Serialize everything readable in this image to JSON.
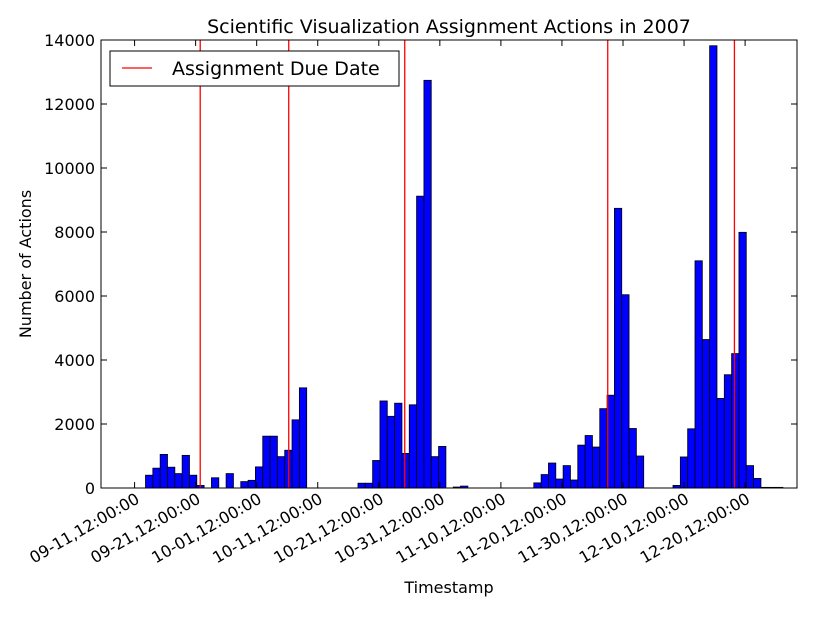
{
  "chart_data": {
    "type": "bar",
    "title": "Scientific Visualization Assignment Actions in 2007",
    "xlabel": "Timestamp",
    "ylabel": "Number of Actions",
    "ylim": [
      0,
      14000
    ],
    "yticks": [
      0,
      2000,
      4000,
      6000,
      8000,
      10000,
      12000,
      14000
    ],
    "xticks": [
      "09-11,12:00:00",
      "09-21,12:00:00",
      "10-01,12:00:00",
      "10-11,12:00:00",
      "10-21,12:00:00",
      "10-31,12:00:00",
      "11-10,12:00:00",
      "11-20,12:00:00",
      "11-30,12:00:00",
      "12-10,12:00:00",
      "12-20,12:00:00"
    ],
    "xlim": [
      "2007-09-06",
      "2007-12-29"
    ],
    "bin_width_days": 1.2,
    "bar_color": "#0000ff",
    "legend": {
      "position": "top-left",
      "entries": [
        {
          "label": "Assignment Due Date",
          "color": "#ff0000",
          "style": "line"
        }
      ]
    },
    "due_dates": [
      "2007-09-22 06:00",
      "2007-10-06 18:00",
      "2007-10-25 18:00",
      "2007-11-28 00:00",
      "2007-12-18 18:00"
    ],
    "series": [
      {
        "bins_start": [
          "2007-09-13 07:00",
          "2007-09-14 11:48",
          "2007-09-15 16:36",
          "2007-09-16 21:24",
          "2007-09-18 02:12",
          "2007-09-19 07:00",
          "2007-09-20 11:48",
          "2007-09-21 16:36",
          "2007-09-22 21:24",
          "2007-09-24 02:12",
          "2007-09-25 07:00",
          "2007-09-26 11:48",
          "2007-09-27 16:36",
          "2007-09-28 21:24",
          "2007-09-30 02:12",
          "2007-10-01 07:00",
          "2007-10-02 11:48",
          "2007-10-03 16:36",
          "2007-10-04 21:24",
          "2007-10-06 02:12",
          "2007-10-07 07:00",
          "2007-10-08 11:48",
          "2007-10-09 16:36",
          "2007-10-10 21:24",
          "2007-10-12 02:12",
          "2007-10-13 07:00",
          "2007-10-14 11:48",
          "2007-10-15 16:36",
          "2007-10-16 21:24",
          "2007-10-18 02:12",
          "2007-10-19 07:00",
          "2007-10-20 11:48",
          "2007-10-21 16:36",
          "2007-10-22 21:24",
          "2007-10-24 02:12",
          "2007-10-25 07:00",
          "2007-10-26 11:48",
          "2007-10-27 16:36",
          "2007-10-28 21:24",
          "2007-10-30 02:12",
          "2007-10-31 07:00",
          "2007-11-01 11:48",
          "2007-11-02 16:36",
          "2007-11-03 21:24",
          "2007-11-05 02:12",
          "2007-11-06 07:00",
          "2007-11-07 11:48",
          "2007-11-08 16:36",
          "2007-11-09 21:24",
          "2007-11-11 02:12",
          "2007-11-12 07:00",
          "2007-11-13 11:48",
          "2007-11-14 16:36",
          "2007-11-15 21:24",
          "2007-11-17 02:12",
          "2007-11-18 07:00",
          "2007-11-19 11:48",
          "2007-11-20 16:36",
          "2007-11-21 21:24",
          "2007-11-23 02:12",
          "2007-11-24 07:00",
          "2007-11-25 11:48",
          "2007-11-26 16:36",
          "2007-11-27 21:24",
          "2007-11-29 02:12",
          "2007-11-30 07:00",
          "2007-12-01 11:48",
          "2007-12-02 16:36",
          "2007-12-03 21:24",
          "2007-12-05 02:12",
          "2007-12-06 07:00",
          "2007-12-07 11:48",
          "2007-12-08 16:36",
          "2007-12-09 21:24",
          "2007-12-11 02:12",
          "2007-12-12 07:00",
          "2007-12-13 11:48",
          "2007-12-14 16:36",
          "2007-12-15 21:24",
          "2007-12-17 02:12",
          "2007-12-18 07:00",
          "2007-12-19 11:48",
          "2007-12-20 16:36",
          "2007-12-21 21:24",
          "2007-12-23 02:12",
          "2007-12-24 07:00",
          "2007-12-25 11:48"
        ],
        "values": [
          400,
          620,
          1050,
          650,
          450,
          1020,
          400,
          80,
          0,
          320,
          0,
          450,
          0,
          200,
          240,
          660,
          1620,
          1620,
          980,
          1180,
          2130,
          3130,
          0,
          0,
          0,
          0,
          0,
          0,
          0,
          150,
          150,
          860,
          2720,
          2240,
          2650,
          1080,
          2600,
          9120,
          12740,
          980,
          1300,
          0,
          30,
          60,
          0,
          0,
          0,
          0,
          0,
          0,
          0,
          0,
          0,
          160,
          420,
          780,
          280,
          700,
          250,
          1340,
          1640,
          1280,
          2480,
          2900,
          8740,
          6040,
          1860,
          1000,
          0,
          0,
          0,
          0,
          80,
          970,
          1850,
          7100,
          4640,
          13820,
          2800,
          3540,
          4200,
          7990,
          700,
          300,
          20,
          20,
          20
        ]
      }
    ]
  }
}
